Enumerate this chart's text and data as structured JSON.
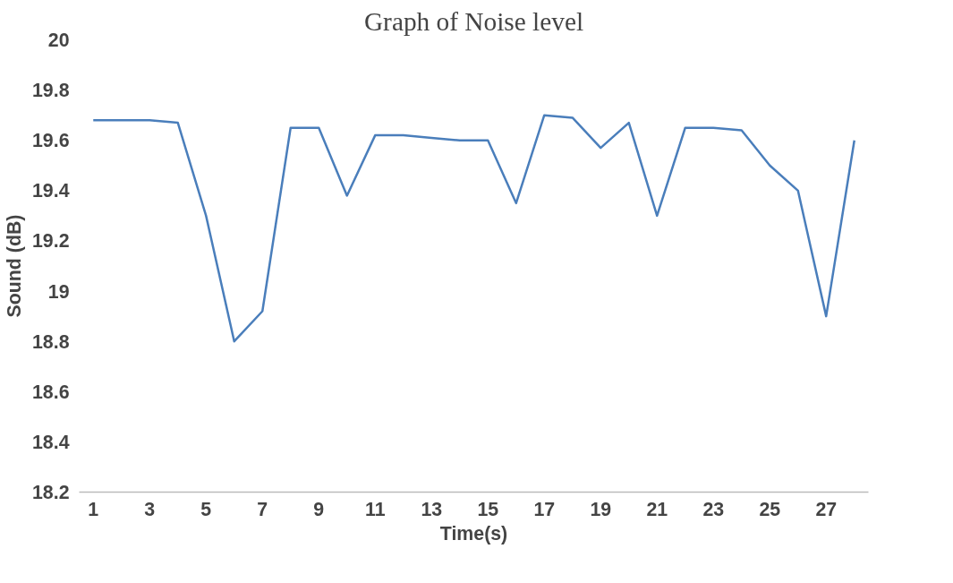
{
  "chart_data": {
    "type": "line",
    "title": "Graph of Noise level",
    "xlabel": "Time(s)",
    "ylabel": "Sound (dB)",
    "x": [
      1,
      2,
      3,
      4,
      5,
      6,
      7,
      8,
      9,
      10,
      11,
      12,
      13,
      14,
      15,
      16,
      17,
      18,
      19,
      20,
      21,
      22,
      23,
      24,
      25,
      26,
      27,
      28
    ],
    "series": [
      {
        "color": "#4a7ebb",
        "values": [
          19.68,
          19.68,
          19.68,
          19.67,
          19.3,
          18.8,
          18.92,
          19.65,
          19.65,
          19.38,
          19.62,
          19.62,
          19.61,
          19.6,
          19.6,
          19.35,
          19.7,
          19.69,
          19.57,
          19.67,
          19.3,
          19.65,
          19.65,
          19.64,
          19.5,
          19.4,
          18.9,
          19.6
        ]
      }
    ],
    "xlim": [
      0.5,
      28.5
    ],
    "xticks": [
      1,
      3,
      5,
      7,
      9,
      11,
      13,
      15,
      17,
      19,
      21,
      23,
      25,
      27
    ],
    "ylim": [
      18.2,
      20
    ],
    "yticks": [
      18.2,
      18.4,
      18.6,
      18.8,
      19,
      19.2,
      19.4,
      19.6,
      19.8,
      20
    ],
    "grid": false,
    "marker": "none",
    "line_style": "solid"
  }
}
